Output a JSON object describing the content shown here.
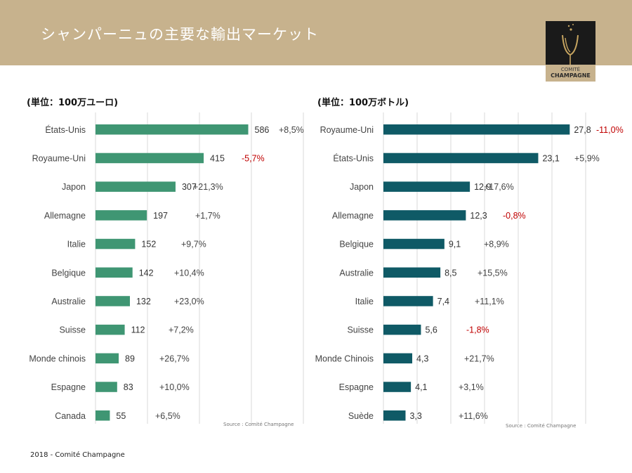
{
  "header": {
    "title": "シャンパーニュの主要な輸出マーケット",
    "logo_line1": "COMITÉ",
    "logo_line2": "CHAMPAGNE"
  },
  "footer": {
    "text": "2018 - Comité Champagne"
  },
  "colors": {
    "banner": "#c7b28d",
    "bar_left": "#3f9673",
    "bar_right": "#0f5a66",
    "negative": "#c00000",
    "positive": "#444444"
  },
  "chart_data": [
    {
      "type": "bar",
      "orientation": "horizontal",
      "unit_label": "(単位：100万ユーロ)",
      "source": "Source : Comité Champagne",
      "categories": [
        "États-Unis",
        "Royaume-Uni",
        "Japon",
        "Allemagne",
        "Italie",
        "Belgique",
        "Australie",
        "Suisse",
        "Monde chinois",
        "Espagne",
        "Canada"
      ],
      "values": [
        586,
        415,
        307,
        197,
        152,
        142,
        132,
        112,
        89,
        83,
        55
      ],
      "value_labels": [
        "586",
        "415",
        "307",
        "197",
        "152",
        "142",
        "132",
        "112",
        "89",
        "83",
        "55"
      ],
      "changes": [
        "+8,5%",
        "-5,7%",
        "+21,3%",
        "+1,7%",
        "+9,7%",
        "+10,4%",
        "+23,0%",
        "+7,2%",
        "+26,7%",
        "+10,0%",
        "+6,5%"
      ],
      "xlim": [
        0,
        800
      ],
      "grid": true
    },
    {
      "type": "bar",
      "orientation": "horizontal",
      "unit_label": "(単位：100万ボトル)",
      "source": "Source : Comité Champagne",
      "categories": [
        "Royaume-Uni",
        "États-Unis",
        "Japon",
        "Allemagne",
        "Belgique",
        "Australie",
        "Italie",
        "Suisse",
        "Monde Chinois",
        "Espagne",
        "Suède"
      ],
      "values": [
        27.8,
        23.1,
        12.9,
        12.3,
        9.1,
        8.5,
        7.4,
        5.6,
        4.3,
        4.1,
        3.3
      ],
      "value_labels": [
        "27,8",
        "23,1",
        "12,9",
        "12,3",
        "9,1",
        "8,5",
        "7,4",
        "5,6",
        "4,3",
        "4,1",
        "3,3"
      ],
      "changes": [
        "-11,0%",
        "+5,9%",
        "+17,6%",
        "-0,8%",
        "+8,9%",
        "+15,5%",
        "+11,1%",
        "-1,8%",
        "+21,7%",
        "+3,1%",
        "+11,6%"
      ],
      "xlim": [
        0,
        35
      ],
      "grid": true
    }
  ]
}
